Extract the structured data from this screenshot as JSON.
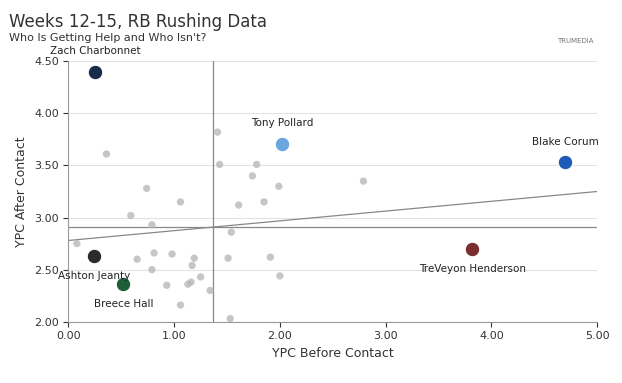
{
  "chart_data": {
    "type": "scatter",
    "title": "Weeks 12-15, RB Rushing Data",
    "subtitle": "Who Is Getting Help and Who Isn't?",
    "watermark": "TRUMEDIA",
    "x_label": "YPC Before Contact",
    "y_label": "YPC After Contact",
    "xlim": [
      0,
      5
    ],
    "xticks": [
      {
        "value": 0,
        "label": "0.00"
      },
      {
        "value": 1,
        "label": "1.00"
      },
      {
        "value": 2,
        "label": "2.00"
      },
      {
        "value": 3,
        "label": "3.00"
      },
      {
        "value": 4,
        "label": "4.00"
      },
      {
        "value": 5,
        "label": "5.00"
      }
    ],
    "ylim": [
      2,
      4.5
    ],
    "yticks": [
      {
        "value": 2,
        "label": "2.00"
      },
      {
        "value": 2.5,
        "label": "2.50"
      },
      {
        "value": 3,
        "label": "3.00"
      },
      {
        "value": 3.5,
        "label": "3.50"
      },
      {
        "value": 4,
        "label": "4.00"
      },
      {
        "value": 4.5,
        "label": "4.50"
      }
    ],
    "grid": true,
    "vline": 1.37,
    "hline": 2.91,
    "trend_line": {
      "x": [
        0,
        5
      ],
      "y": [
        2.78,
        3.25
      ]
    },
    "x": [
      0.25,
      2.02,
      4.7,
      3.82,
      0.24,
      0.52,
      0.36,
      1.41,
      0.74,
      1.43,
      1.78,
      1.74,
      1.06,
      1.61,
      0.59,
      0.79,
      1.99,
      1.85,
      2.79,
      1.54,
      0.08,
      0.81,
      0.98,
      1.19,
      1.51,
      1.91,
      0.65,
      1.17,
      0.79,
      1.25,
      1.16,
      0.93,
      1.13,
      2.0,
      1.34,
      1.06,
      1.53
    ],
    "values": [
      4.4,
      3.71,
      3.53,
      2.7,
      2.63,
      2.36,
      3.61,
      3.82,
      3.28,
      3.51,
      3.51,
      3.4,
      3.15,
      3.12,
      3.02,
      2.93,
      3.3,
      3.15,
      3.35,
      2.86,
      2.75,
      2.66,
      2.65,
      2.61,
      2.61,
      2.62,
      2.6,
      2.54,
      2.5,
      2.43,
      2.38,
      2.35,
      2.36,
      2.44,
      2.3,
      2.16,
      2.03
    ],
    "labels": [
      "Zach Charbonnet",
      "Tony Pollard",
      "Blake Corum",
      "TreVeyon Henderson",
      "Ashton Jeanty",
      "Breece Hall",
      null,
      null,
      null,
      null,
      null,
      null,
      null,
      null,
      null,
      null,
      null,
      null,
      null,
      null,
      null,
      null,
      null,
      null,
      null,
      null,
      null,
      null,
      null,
      null,
      null,
      null,
      null,
      null,
      null,
      null,
      null
    ],
    "colors": [
      "#1b2a4a",
      "#6aa6e0",
      "#1e5bb8",
      "#7a2e2e",
      "#2b2b2b",
      "#1f5e3a",
      "#b4b4b4",
      "#b4b4b4",
      "#b4b4b4",
      "#b4b4b4",
      "#b4b4b4",
      "#b4b4b4",
      "#b4b4b4",
      "#b4b4b4",
      "#b4b4b4",
      "#b4b4b4",
      "#b4b4b4",
      "#b4b4b4",
      "#b4b4b4",
      "#b4b4b4",
      "#b4b4b4",
      "#b4b4b4",
      "#b4b4b4",
      "#b4b4b4",
      "#b4b4b4",
      "#b4b4b4",
      "#b4b4b4",
      "#b4b4b4",
      "#b4b4b4",
      "#b4b4b4",
      "#b4b4b4",
      "#b4b4b4",
      "#b4b4b4",
      "#b4b4b4",
      "#b4b4b4",
      "#b4b4b4",
      "#b4b4b4"
    ]
  }
}
